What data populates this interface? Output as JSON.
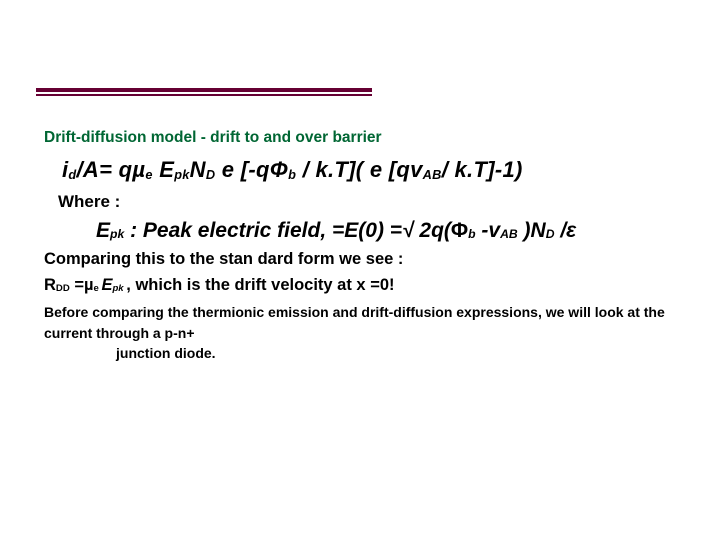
{
  "colors": {
    "rule": "#660033",
    "heading": "#006633",
    "text": "#000000",
    "background": "#ffffff"
  },
  "typography": {
    "family": "Verdana",
    "heading_fontsize": 15.5,
    "equation_fontsize": 22,
    "epk_fontsize": 21,
    "body_fontsize": 16.5,
    "final_fontsize": 14
  },
  "heading": "Drift-diffusion model - drift to and over barrier",
  "equation": {
    "prefix": "i",
    "sub1": "d",
    "txt1": "/A= qµ",
    "sub2": "e",
    "txt2": " E",
    "sub3": "pk",
    "txt3": "N",
    "sub4": "D",
    "txt4": " e [-qΦ",
    "sub5": "b",
    "txt5": " / k.T]( e [qv",
    "sub6": "AB",
    "txt6": "/ k.T]-1)"
  },
  "where": "Where :",
  "epk": {
    "p1": "E",
    "s1": "pk",
    "p2": " : Peak electric field, =E(0) =√ 2q(",
    "p3": "Φ",
    "s3": "b",
    "p4": " -v",
    "s4": "AB",
    "p5": " )N",
    "s5": "D",
    "p6": " /ε"
  },
  "compare": "Comparing this to the stan dard form we see :",
  "rdd": {
    "p1": "R",
    "s1": "DD",
    "p2": " =µ",
    "s2": "e ",
    "p3": "E",
    "s3": "pk ",
    "p4": ", which is the drift velocity at x =0!"
  },
  "final1": "Before comparing the thermionic emission and drift-diffusion expressions, we will look at the current through a p-n+",
  "final2": "junction diode."
}
